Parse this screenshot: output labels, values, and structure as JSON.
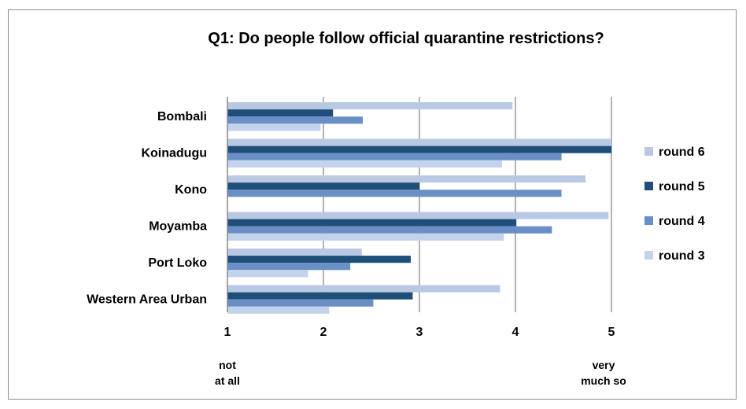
{
  "chart_data": {
    "type": "bar",
    "orientation": "horizontal",
    "title": "Q1:   Do people follow official quarantine restrictions?",
    "categories": [
      "Bombali",
      "Koinadugu",
      "Kono",
      "Moyamba",
      "Port Loko",
      "Western Area Urban"
    ],
    "xlim": [
      1,
      5
    ],
    "xticks": [
      "1",
      "2",
      "3",
      "4",
      "5"
    ],
    "x_scale_labels": {
      "low": [
        "not",
        "at all"
      ],
      "high": [
        "very",
        "much so"
      ]
    },
    "grid": "vertical",
    "legend_position": "right",
    "series": [
      {
        "name": "round 6",
        "color": "#b9c9e3",
        "values": [
          3.97,
          5.0,
          4.73,
          4.97,
          2.4,
          3.84
        ]
      },
      {
        "name": "round 5",
        "color": "#1f4e79",
        "values": [
          2.1,
          5.0,
          3.0,
          4.01,
          2.91,
          2.93
        ]
      },
      {
        "name": "round 4",
        "color": "#6a8fc7",
        "values": [
          2.41,
          4.48,
          4.48,
          4.38,
          2.28,
          2.52
        ]
      },
      {
        "name": "round 3",
        "color": "#c3d3ec",
        "values": [
          1.97,
          3.86,
          null,
          3.88,
          1.84,
          2.06
        ]
      }
    ]
  }
}
